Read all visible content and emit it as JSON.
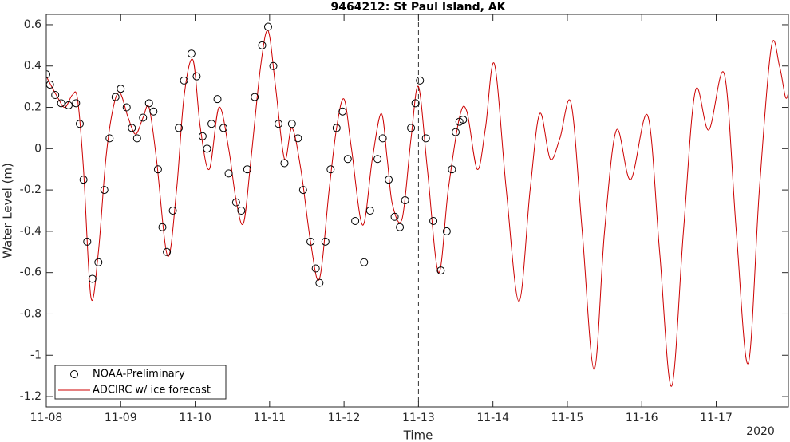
{
  "chart_data": {
    "type": "line",
    "title": "9464212: St Paul Island, AK",
    "xlabel": "Time",
    "ylabel": "Water Level (m)",
    "year_label": "2020",
    "xlim": [
      0,
      9.97
    ],
    "ylim": [
      -1.25,
      0.65
    ],
    "xticks": [
      {
        "value": 0,
        "label": "11-08"
      },
      {
        "value": 1,
        "label": "11-09"
      },
      {
        "value": 2,
        "label": "11-10"
      },
      {
        "value": 3,
        "label": "11-11"
      },
      {
        "value": 4,
        "label": "11-12"
      },
      {
        "value": 5,
        "label": "11-13"
      },
      {
        "value": 6,
        "label": "11-14"
      },
      {
        "value": 7,
        "label": "11-15"
      },
      {
        "value": 8,
        "label": "11-16"
      },
      {
        "value": 9,
        "label": "11-17"
      }
    ],
    "yticks": [
      -1.2,
      -1,
      -0.8,
      -0.6,
      -0.4,
      -0.2,
      0,
      0.2,
      0.4,
      0.6
    ],
    "forecast_start": 5,
    "legend": "lower left",
    "grid": false,
    "series": [
      {
        "name": "NOAA-Preliminary",
        "type": "scatter",
        "color": "#000000",
        "x": [
          0,
          0.05,
          0.12,
          0.2,
          0.3,
          0.4,
          0.45,
          0.5,
          0.55,
          0.62,
          0.7,
          0.78,
          0.85,
          0.93,
          1.0,
          1.08,
          1.15,
          1.22,
          1.3,
          1.38,
          1.44,
          1.5,
          1.56,
          1.62,
          1.7,
          1.78,
          1.85,
          1.95,
          2.02,
          2.1,
          2.16,
          2.22,
          2.3,
          2.38,
          2.45,
          2.55,
          2.62,
          2.7,
          2.8,
          2.9,
          2.98,
          3.05,
          3.12,
          3.2,
          3.3,
          3.38,
          3.45,
          3.55,
          3.62,
          3.67,
          3.75,
          3.82,
          3.9,
          3.98,
          4.05,
          4.15,
          4.27,
          4.35,
          4.45,
          4.52,
          4.6,
          4.68,
          4.75,
          4.82,
          4.9,
          4.96,
          5.02,
          5.1,
          5.2,
          5.3,
          5.38,
          5.45,
          5.5,
          5.55,
          5.6
        ],
        "values": [
          0.36,
          0.31,
          0.26,
          0.22,
          0.21,
          0.22,
          0.12,
          -0.15,
          -0.45,
          -0.63,
          -0.55,
          -0.2,
          0.05,
          0.25,
          0.29,
          0.2,
          0.1,
          0.05,
          0.15,
          0.22,
          0.18,
          -0.1,
          -0.38,
          -0.5,
          -0.3,
          0.1,
          0.33,
          0.46,
          0.35,
          0.06,
          0,
          0.12,
          0.24,
          0.1,
          -0.12,
          -0.26,
          -0.3,
          -0.1,
          0.25,
          0.5,
          0.59,
          0.4,
          0.12,
          -0.07,
          0.12,
          0.05,
          -0.2,
          -0.45,
          -0.58,
          -0.65,
          -0.45,
          -0.1,
          0.1,
          0.18,
          -0.05,
          -0.35,
          -0.55,
          -0.3,
          -0.05,
          0.05,
          -0.15,
          -0.33,
          -0.38,
          -0.25,
          0.1,
          0.22,
          0.33,
          0.05,
          -0.35,
          -0.59,
          -0.4,
          -0.1,
          0.08,
          0.13,
          0.14
        ]
      },
      {
        "name": "ADCIRC w/ ice forecast",
        "type": "line",
        "color": "#cc0000",
        "x": [
          0,
          0.15,
          0.25,
          0.35,
          0.42,
          0.5,
          0.6,
          0.7,
          0.8,
          0.9,
          0.99,
          1.1,
          1.2,
          1.3,
          1.38,
          1.48,
          1.63,
          1.75,
          1.85,
          1.97,
          2.07,
          2.19,
          2.32,
          2.45,
          2.55,
          2.65,
          2.75,
          2.88,
          2.98,
          3.08,
          3.2,
          3.3,
          3.42,
          3.55,
          3.67,
          3.8,
          3.9,
          4.0,
          4.1,
          4.25,
          4.38,
          4.5,
          4.58,
          4.65,
          4.78,
          4.9,
          5.0,
          5.12,
          5.27,
          5.4,
          5.55,
          5.65,
          5.79,
          5.9,
          6.02,
          6.18,
          6.35,
          6.5,
          6.63,
          6.77,
          6.9,
          7.05,
          7.2,
          7.36,
          7.5,
          7.66,
          7.85,
          8.08,
          8.24,
          8.4,
          8.56,
          8.72,
          8.9,
          9.11,
          9.27,
          9.43,
          9.58,
          9.74,
          9.85,
          9.93,
          9.97
        ],
        "values": [
          0.35,
          0.25,
          0.2,
          0.26,
          0.24,
          -0.1,
          -0.72,
          -0.5,
          -0.05,
          0.2,
          0.27,
          0.15,
          0.07,
          0.15,
          0.2,
          -0.05,
          -0.52,
          -0.2,
          0.25,
          0.43,
          0.1,
          -0.1,
          0.2,
          0,
          -0.25,
          -0.36,
          -0.05,
          0.4,
          0.57,
          0.3,
          -0.05,
          0.1,
          -0.1,
          -0.45,
          -0.63,
          -0.2,
          0.1,
          0.24,
          0,
          -0.37,
          -0.05,
          0.17,
          -0.05,
          -0.27,
          -0.34,
          0.05,
          0.3,
          -0.1,
          -0.6,
          -0.2,
          0.15,
          0.18,
          -0.1,
          0.1,
          0.41,
          -0.2,
          -0.74,
          -0.2,
          0.17,
          -0.05,
          0.05,
          0.22,
          -0.4,
          -1.07,
          -0.4,
          0.09,
          -0.15,
          0.16,
          -0.5,
          -1.15,
          -0.4,
          0.28,
          0.09,
          0.36,
          -0.4,
          -1.04,
          -0.2,
          0.49,
          0.4,
          0.25,
          0.27
        ]
      }
    ]
  }
}
